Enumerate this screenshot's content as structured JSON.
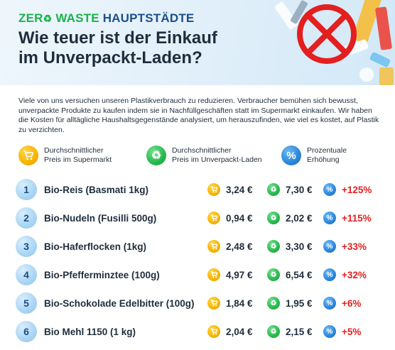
{
  "header": {
    "title_zero": "ZER",
    "title_waste": "WASTE",
    "title_hauptstadte": "HAUPTSTÄDTE",
    "title_line2a": "Wie teuer ist der Einkauf",
    "title_line2b": "im Unverpackt-Laden?"
  },
  "intro": "Viele von uns versuchen unseren Plastikverbrauch zu reduzieren. Verbraucher bemühen sich bewusst, unverpackte Produkte zu kaufen indem sie in Nachfüllgeschäften statt im Supermarkt einkaufen. Wir haben die Kosten für alltägliche Haushaltsgegenstände analysiert, um herauszufinden, wie viel es kostet, auf Plastik zu verzichten.",
  "legend": {
    "supermarket": "Durchschnittlicher\nPreis im Supermarkt",
    "unverpackt": "Durchschnittlicher\nPreis im Unverpackt-Laden",
    "percent": "Prozentuale\nErhöhung"
  },
  "icons": {
    "cart": "cart-icon",
    "recycle": "recycle-icon",
    "percent": "percent-icon"
  },
  "colors": {
    "zero_green": "#19b34a",
    "title_blue": "#1a4f8b",
    "increase_red": "#e41f1f",
    "supermarket_yellow": "#f5b400",
    "unverpackt_green": "#28b84f",
    "percent_blue": "#2b86d9"
  },
  "rows": [
    {
      "num": "1",
      "name": "Bio-Reis (Basmati 1kg)",
      "supermarket": "3,24 €",
      "unverpackt": "7,30 €",
      "increase": "+125%"
    },
    {
      "num": "2",
      "name": "Bio-Nudeln (Fusilli 500g)",
      "supermarket": "0,94 €",
      "unverpackt": "2,02 €",
      "increase": "+115%"
    },
    {
      "num": "3",
      "name": "Bio-Haferflocken (1kg)",
      "supermarket": "2,48 €",
      "unverpackt": "3,30 €",
      "increase": "+33%"
    },
    {
      "num": "4",
      "name": "Bio-Pfefferminztee (100g)",
      "supermarket": "4,97 €",
      "unverpackt": "6,54 €",
      "increase": "+32%"
    },
    {
      "num": "5",
      "name": "Bio-Schokolade Edelbitter (100g)",
      "supermarket": "1,84 €",
      "unverpackt": "1,95 €",
      "increase": "+6%"
    },
    {
      "num": "6",
      "name": "Bio Mehl 1150 (1 kg)",
      "supermarket": "2,04 €",
      "unverpackt": "2,15 €",
      "increase": "+5%"
    }
  ]
}
